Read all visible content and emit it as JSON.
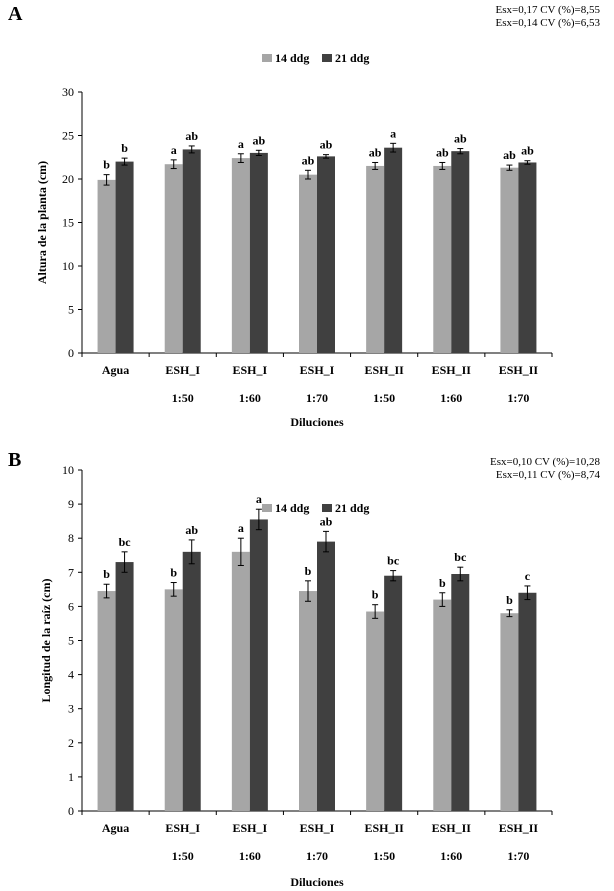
{
  "colors": {
    "series_14": "#a6a6a6",
    "series_21": "#404040",
    "axis": "#000000"
  },
  "chart_data": [
    {
      "type": "bar",
      "panel_label": "A",
      "stats": [
        "Esx=0,17   CV (%)=8,55",
        "Esx=0,14   CV (%)=6,53"
      ],
      "legend": [
        "14 ddg",
        "21 ddg"
      ],
      "ylabel": "Altura de la planta (cm)",
      "xlabel": "Diluciones",
      "ylim": [
        0,
        30
      ],
      "yticks": [
        0,
        5,
        10,
        15,
        20,
        25,
        30
      ],
      "categories": [
        "Agua",
        "ESH_I",
        "ESH_I",
        "ESH_I",
        "ESH_II",
        "ESH_II",
        "ESH_II"
      ],
      "sublabels": [
        "",
        "1:50",
        "1:60",
        "1:70",
        "1:50",
        "1:60",
        "1:70"
      ],
      "series": [
        {
          "name": "14 ddg",
          "values": [
            19.9,
            21.7,
            22.4,
            20.5,
            21.5,
            21.5,
            21.3
          ],
          "errors": [
            0.6,
            0.5,
            0.5,
            0.5,
            0.4,
            0.4,
            0.3
          ],
          "letters": [
            "b",
            "a",
            "a",
            "ab",
            "ab",
            "ab",
            "ab"
          ]
        },
        {
          "name": "21 ddg",
          "values": [
            22.0,
            23.4,
            23.0,
            22.6,
            23.6,
            23.2,
            21.9
          ],
          "errors": [
            0.4,
            0.4,
            0.3,
            0.2,
            0.5,
            0.3,
            0.2
          ],
          "letters": [
            "b",
            "ab",
            "ab",
            "ab",
            "a",
            "ab",
            "ab"
          ]
        }
      ]
    },
    {
      "type": "bar",
      "panel_label": "B",
      "stats": [
        "Esx=0,10   CV (%)=10,28",
        "Esx=0,11   CV (%)=8,74"
      ],
      "legend": [
        "14 ddg",
        "21 ddg"
      ],
      "ylabel": "Longitud de la raíz (cm)",
      "xlabel": "Diluciones",
      "ylim": [
        0,
        10
      ],
      "yticks": [
        0,
        1,
        2,
        3,
        4,
        5,
        6,
        7,
        8,
        9,
        10
      ],
      "categories": [
        "Agua",
        "ESH_I",
        "ESH_I",
        "ESH_I",
        "ESH_II",
        "ESH_II",
        "ESH_II"
      ],
      "sublabels": [
        "",
        "1:50",
        "1:60",
        "1:70",
        "1:50",
        "1:60",
        "1:70"
      ],
      "series": [
        {
          "name": "14 ddg",
          "values": [
            6.45,
            6.5,
            7.6,
            6.45,
            5.85,
            6.2,
            5.8
          ],
          "errors": [
            0.2,
            0.2,
            0.4,
            0.3,
            0.2,
            0.2,
            0.1
          ],
          "letters": [
            "b",
            "b",
            "a",
            "b",
            "b",
            "b",
            "b"
          ]
        },
        {
          "name": "21 ddg",
          "values": [
            7.3,
            7.6,
            8.55,
            7.9,
            6.9,
            6.95,
            6.4
          ],
          "errors": [
            0.3,
            0.35,
            0.3,
            0.3,
            0.15,
            0.2,
            0.2
          ],
          "letters": [
            "bc",
            "ab",
            "a",
            "ab",
            "bc",
            "bc",
            "c"
          ]
        }
      ]
    }
  ]
}
